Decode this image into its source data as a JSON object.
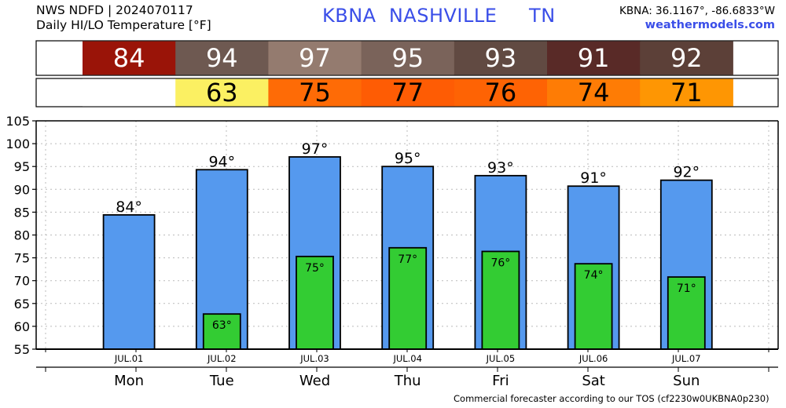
{
  "header": {
    "line1": "NWS NDFD | 2024070117",
    "line2": "Daily HI/LO Temperature [°F]",
    "station_title": "KBNA  NASHVILLE     TN",
    "coords": "KBNA: 36.1167°, -86.6833°W",
    "site": "weathermodels.com"
  },
  "footer": {
    "text": "Commercial forecaster according to our TOS (cf2230w0UKBNA0p230)"
  },
  "hi_strip": {
    "cells": [
      {
        "text": "84",
        "color": "#9a1408",
        "text_color": "#ffffff"
      },
      {
        "text": "94",
        "color": "#6e5951",
        "text_color": "#ffffff"
      },
      {
        "text": "97",
        "color": "#947b6f",
        "text_color": "#ffffff"
      },
      {
        "text": "95",
        "color": "#7a635a",
        "text_color": "#ffffff"
      },
      {
        "text": "93",
        "color": "#614a42",
        "text_color": "#ffffff"
      },
      {
        "text": "91",
        "color": "#592a27",
        "text_color": "#ffffff"
      },
      {
        "text": "92",
        "color": "#5c4038",
        "text_color": "#ffffff"
      }
    ]
  },
  "lo_strip": {
    "cells": [
      {
        "text": "",
        "color": "#ffffff",
        "text_color": "#000000"
      },
      {
        "text": "63",
        "color": "#fbf062",
        "text_color": "#000000"
      },
      {
        "text": "75",
        "color": "#fe6b06",
        "text_color": "#000000"
      },
      {
        "text": "77",
        "color": "#fe5c04",
        "text_color": "#000000"
      },
      {
        "text": "76",
        "color": "#fe6304",
        "text_color": "#000000"
      },
      {
        "text": "74",
        "color": "#fe7c05",
        "text_color": "#000000"
      },
      {
        "text": "71",
        "color": "#fe9603",
        "text_color": "#000000"
      }
    ]
  },
  "chart_data": {
    "type": "bar",
    "categories": [
      "JUL.01",
      "JUL.02",
      "JUL.03",
      "JUL.04",
      "JUL.05",
      "JUL.06",
      "JUL.07"
    ],
    "day_labels": [
      "Mon",
      "Tue",
      "Wed",
      "Thu",
      "Fri",
      "Sat",
      "Sun"
    ],
    "series": [
      {
        "values": [
          84,
          94,
          97,
          95,
          93,
          91,
          92
        ],
        "labels": [
          "84°",
          "94°",
          "97°",
          "95°",
          "93°",
          "91°",
          "92°"
        ],
        "color": "#5599ee"
      },
      {
        "values": [
          null,
          63,
          75,
          77,
          76,
          74,
          71
        ],
        "labels": [
          "",
          "63°",
          "75°",
          "77°",
          "76°",
          "74°",
          "71°"
        ],
        "color": "#33cc33"
      }
    ],
    "hi_precise": [
      84.4,
      94.3,
      97.1,
      95.0,
      93.0,
      90.7,
      92.0
    ],
    "lo_precise": [
      null,
      62.7,
      75.3,
      77.2,
      76.4,
      73.7,
      70.8
    ],
    "ylim": [
      55,
      105
    ],
    "yticks": [
      105,
      100,
      95,
      90,
      85,
      80,
      75,
      70,
      65,
      60,
      55
    ],
    "grid": true
  }
}
